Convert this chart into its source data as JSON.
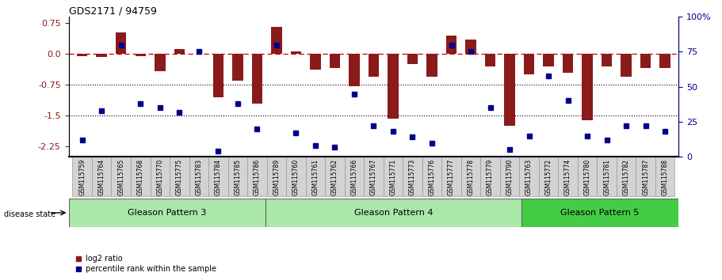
{
  "title": "GDS2171 / 94759",
  "samples": [
    "GSM115759",
    "GSM115764",
    "GSM115765",
    "GSM115768",
    "GSM115770",
    "GSM115775",
    "GSM115783",
    "GSM115784",
    "GSM115785",
    "GSM115786",
    "GSM115789",
    "GSM115760",
    "GSM115761",
    "GSM115762",
    "GSM115766",
    "GSM115767",
    "GSM115771",
    "GSM115773",
    "GSM115776",
    "GSM115777",
    "GSM115778",
    "GSM115779",
    "GSM115790",
    "GSM115763",
    "GSM115772",
    "GSM115774",
    "GSM115780",
    "GSM115781",
    "GSM115782",
    "GSM115787",
    "GSM115788"
  ],
  "log2_ratio": [
    -0.05,
    -0.08,
    0.52,
    -0.05,
    -0.42,
    0.12,
    0.01,
    -1.05,
    -0.65,
    -1.2,
    0.65,
    0.05,
    -0.38,
    -0.35,
    -0.78,
    -0.55,
    -1.57,
    -0.25,
    -0.55,
    0.45,
    0.35,
    -0.3,
    -1.75,
    -0.5,
    -0.3,
    -0.45,
    -1.62,
    -0.3,
    -0.55,
    -0.35,
    -0.35
  ],
  "percentile": [
    12,
    33,
    80,
    38,
    35,
    32,
    75,
    4,
    38,
    20,
    80,
    17,
    8,
    7,
    45,
    22,
    18,
    14,
    10,
    80,
    75,
    35,
    5,
    15,
    58,
    40,
    15,
    12,
    22,
    22,
    18
  ],
  "groups": [
    {
      "label": "Gleason Pattern 3",
      "start": 0,
      "end": 10
    },
    {
      "label": "Gleason Pattern 4",
      "start": 10,
      "end": 23
    },
    {
      "label": "Gleason Pattern 5",
      "start": 23,
      "end": 31
    }
  ],
  "group_colors": [
    "#aae8aa",
    "#aae8aa",
    "#44cc44"
  ],
  "ylim_left": [
    -2.5,
    0.9
  ],
  "ylim_right": [
    0,
    100
  ],
  "yticks_left": [
    0.75,
    0.0,
    -0.75,
    -1.5,
    -2.25
  ],
  "yticks_right": [
    100,
    75,
    50,
    25,
    0
  ],
  "bar_color": "#8b1a1a",
  "scatter_color": "#00008b",
  "zero_line_color": "#cc0000",
  "disease_state_label": "disease state"
}
